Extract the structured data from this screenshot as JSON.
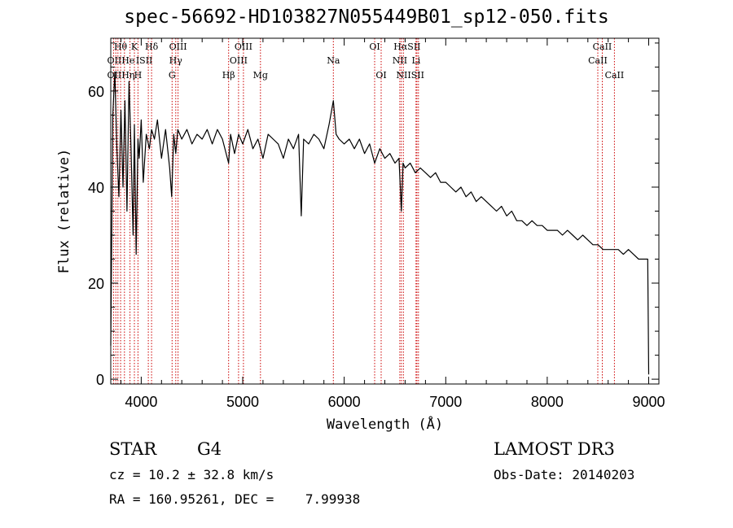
{
  "chart_data": {
    "type": "line",
    "title": "spec-56692-HD103827N055449B01_sp12-050.fits",
    "xlabel": "Wavelength (Å)",
    "ylabel": "Flux (relative)",
    "xlim": [
      3700,
      9100
    ],
    "ylim": [
      -1,
      71
    ],
    "xticks": [
      4000,
      5000,
      6000,
      7000,
      8000,
      9000
    ],
    "yticks": [
      0,
      20,
      40,
      60
    ],
    "grid": false,
    "series": [
      {
        "name": "flux",
        "x": [
          3700,
          3720,
          3740,
          3760,
          3780,
          3800,
          3820,
          3840,
          3860,
          3880,
          3900,
          3920,
          3933,
          3950,
          3968,
          3980,
          4000,
          4020,
          4050,
          4080,
          4102,
          4130,
          4160,
          4200,
          4240,
          4280,
          4300,
          4320,
          4340,
          4360,
          4400,
          4450,
          4500,
          4550,
          4600,
          4650,
          4700,
          4750,
          4800,
          4861,
          4880,
          4920,
          4960,
          5000,
          5050,
          5100,
          5150,
          5200,
          5250,
          5300,
          5350,
          5400,
          5450,
          5500,
          5550,
          5577,
          5600,
          5650,
          5700,
          5750,
          5800,
          5850,
          5893,
          5920,
          5950,
          6000,
          6050,
          6100,
          6150,
          6200,
          6250,
          6300,
          6350,
          6400,
          6450,
          6500,
          6540,
          6563,
          6580,
          6600,
          6650,
          6700,
          6750,
          6800,
          6850,
          6900,
          6950,
          7000,
          7050,
          7100,
          7150,
          7200,
          7250,
          7300,
          7350,
          7400,
          7450,
          7500,
          7550,
          7600,
          7650,
          7700,
          7750,
          7800,
          7850,
          7900,
          7950,
          8000,
          8050,
          8100,
          8150,
          8200,
          8250,
          8300,
          8350,
          8400,
          8450,
          8500,
          8550,
          8600,
          8650,
          8700,
          8750,
          8800,
          8850,
          8900,
          8950,
          8990,
          9000
        ],
        "values": [
          7,
          55,
          64,
          48,
          38,
          56,
          40,
          58,
          35,
          62,
          48,
          30,
          53,
          26,
          50,
          46,
          54,
          41,
          51,
          48,
          52,
          50,
          54,
          46,
          52,
          44,
          38,
          51,
          47,
          52,
          50,
          52,
          49,
          51,
          50,
          52,
          49,
          52,
          50,
          45,
          51,
          47,
          51,
          49,
          52,
          48,
          50,
          46,
          51,
          50,
          49,
          46,
          50,
          48,
          51,
          34,
          50,
          49,
          51,
          50,
          48,
          53,
          58,
          51,
          50,
          49,
          50,
          48,
          50,
          47,
          49,
          45,
          48,
          46,
          47,
          45,
          46,
          35,
          45,
          44,
          45,
          43,
          44,
          43,
          42,
          43,
          41,
          41,
          40,
          39,
          40,
          38,
          39,
          37,
          38,
          37,
          36,
          35,
          36,
          34,
          35,
          33,
          33,
          32,
          33,
          32,
          32,
          31,
          31,
          31,
          30,
          31,
          30,
          29,
          30,
          29,
          28,
          28,
          27,
          27,
          27,
          27,
          26,
          27,
          26,
          25,
          25,
          25,
          1
        ]
      }
    ],
    "line_lists": {
      "row1": [
        {
          "label": "Hθ",
          "wl": 3797
        },
        {
          "label": "K",
          "wl": 3933
        },
        {
          "label": "Hδ",
          "wl": 4102
        },
        {
          "label": "OIII",
          "wl": 4363
        },
        {
          "label": "OIII",
          "wl": 5007
        },
        {
          "label": "OI",
          "wl": 6300
        },
        {
          "label": "HαSII",
          "wl": 6620
        },
        {
          "label": "CaII",
          "wl": 8542
        }
      ],
      "row2": [
        {
          "label": "OIIHe",
          "wl": 3800
        },
        {
          "label": "ISII",
          "wl": 4030
        },
        {
          "label": "Hγ",
          "wl": 4340
        },
        {
          "label": "OIII",
          "wl": 4959
        },
        {
          "label": "Na",
          "wl": 5893
        },
        {
          "label": "NII",
          "wl": 6548
        },
        {
          "label": "Li",
          "wl": 6708
        },
        {
          "label": "CaII",
          "wl": 8498
        }
      ],
      "row3": [
        {
          "label": "OIIHη",
          "wl": 3800
        },
        {
          "label": "H",
          "wl": 3968
        },
        {
          "label": "G",
          "wl": 4304
        },
        {
          "label": "Hβ",
          "wl": 4861
        },
        {
          "label": "Mg",
          "wl": 5175
        },
        {
          "label": "OI",
          "wl": 6364
        },
        {
          "label": "NIISII",
          "wl": 6650
        },
        {
          "label": "CaII",
          "wl": 8662
        }
      ],
      "markers": [
        3727,
        3750,
        3771,
        3797,
        3835,
        3889,
        3933,
        3968,
        4070,
        4102,
        4304,
        4340,
        4363,
        4861,
        4959,
        5007,
        5175,
        5893,
        6300,
        6364,
        6548,
        6563,
        6583,
        6707,
        6716,
        6731,
        8498,
        8542,
        8662
      ]
    },
    "marker_color": "#cc0000"
  },
  "info": {
    "class": "STAR",
    "subclass": "G4",
    "survey": "LAMOST DR3",
    "cz": "cz = 10.2 ± 32.8 km/s",
    "obs_date": "Obs-Date: 20140203",
    "coords": "RA = 160.95261, DEC =    7.99938"
  }
}
